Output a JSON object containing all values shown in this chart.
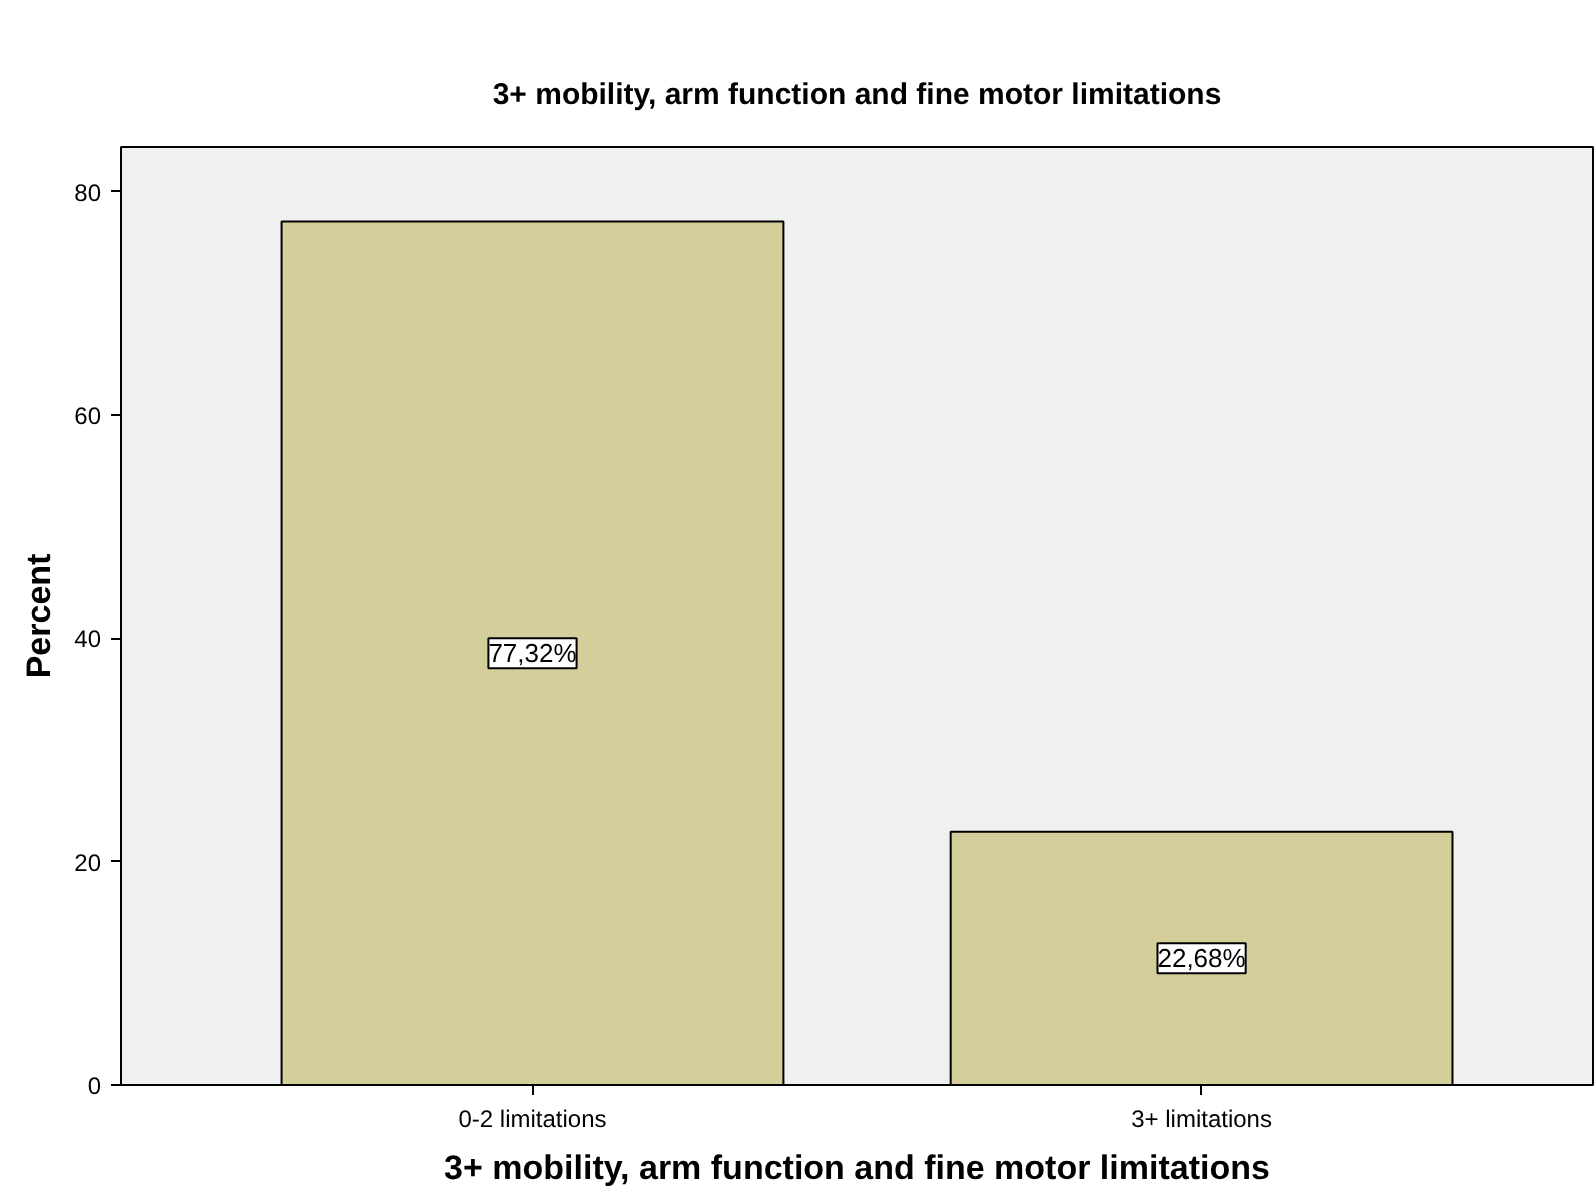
{
  "chart_data": {
    "type": "bar",
    "title": "3+ mobility, arm function and fine motor limitations",
    "xlabel": "3+ mobility, arm function and fine motor limitations",
    "ylabel": "Percent",
    "categories": [
      "0-2 limitations",
      "3+ limitations"
    ],
    "values": [
      77.32,
      22.68
    ],
    "value_labels": [
      "77,32%",
      "22,68%"
    ],
    "color": "#d3ce9a",
    "ylim": [
      0,
      84
    ],
    "yticks": [
      0,
      20,
      40,
      60,
      80
    ],
    "grid": false
  }
}
